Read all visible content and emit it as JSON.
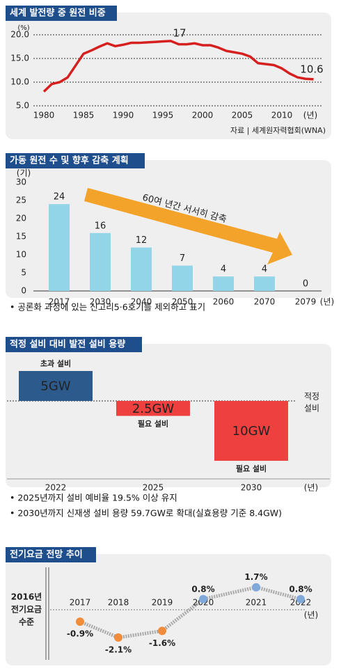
{
  "chart_data": [
    {
      "type": "line",
      "title": "세계 발전량 중 원전 비중",
      "y_unit": "(%)",
      "x_unit": "(년)",
      "source": "자료 | 세계원자력협회(WNA)",
      "color": "#d62020",
      "grid": true,
      "x": [
        1980,
        1981,
        1982,
        1983,
        1984,
        1985,
        1986,
        1987,
        1988,
        1989,
        1990,
        1991,
        1992,
        1993,
        1994,
        1995,
        1996,
        1997,
        1998,
        1999,
        2000,
        2001,
        2002,
        2003,
        2004,
        2005,
        2006,
        2007,
        2008,
        2009,
        2010,
        2011,
        2012,
        2013,
        2014
      ],
      "values": [
        8.0,
        9.6,
        10.0,
        11.0,
        13.5,
        16.0,
        16.7,
        17.5,
        18.2,
        17.6,
        17.9,
        18.3,
        18.3,
        18.4,
        18.5,
        18.6,
        18.7,
        18.0,
        18.0,
        18.2,
        17.8,
        17.8,
        17.3,
        16.6,
        16.3,
        16.0,
        15.4,
        14.0,
        13.8,
        13.6,
        12.9,
        11.8,
        11.0,
        10.7,
        10.6
      ],
      "xlim": [
        1980,
        2014
      ],
      "xticks": [
        1980,
        1985,
        1990,
        1995,
        2000,
        2005,
        2010
      ],
      "ylim": [
        5,
        20
      ],
      "yticks": [
        {
          "value": 5,
          "label": "5.0"
        },
        {
          "value": 10,
          "label": "10.0"
        },
        {
          "value": 15,
          "label": "15.0"
        },
        {
          "value": 20,
          "label": "20.0"
        }
      ],
      "annotations": [
        "17",
        "10.6"
      ]
    },
    {
      "type": "bar",
      "title": "가동 원전 수 및 향후 감축 계획",
      "y_unit": "(기)",
      "x_unit": "(년)",
      "color": "#92d5e8",
      "label_color": "#3a86c8",
      "categories": [
        "2017",
        "2030",
        "2040",
        "2050",
        "2060",
        "2070",
        "2079"
      ],
      "values": [
        24,
        16,
        12,
        7,
        4,
        4,
        0
      ],
      "ylim": [
        0,
        30
      ],
      "yticks": [
        0,
        5,
        10,
        15,
        20,
        25,
        30
      ],
      "annotation": "60여 년간 서서히 감축",
      "notes": [
        "• 공론화 과정에 있는 신고리5·6호기를 제외하고 표기"
      ]
    },
    {
      "type": "bar",
      "title": "적정 설비 대비 발전 설비 용량",
      "x_unit": "(년)",
      "baseline_label": [
        "적정",
        "설비"
      ],
      "categories": [
        "2022",
        "2025",
        "2030"
      ],
      "values": [
        5,
        -2.5,
        -10
      ],
      "value_labels": [
        "5GW",
        "2.5GW",
        "10GW"
      ],
      "bar_notes": [
        "초과 설비",
        "필요 설비",
        "필요 설비"
      ],
      "colors": [
        "#2c5a8c",
        "#ef4040",
        "#ef4040"
      ],
      "notes": [
        "• 2025년까지 설비 예비율 19.5% 이상 유지",
        "• 2030년까지 신재생 설비 용량 59.7GW로 확대(실효용량 기준 8.4GW)"
      ]
    },
    {
      "type": "line",
      "title": "전기요금 전망 추이",
      "x_unit": "(년)",
      "baseline_label": [
        "2016년",
        "전기요금",
        "수준"
      ],
      "categories": [
        "2017",
        "2018",
        "2019",
        "2020",
        "2021",
        "2022"
      ],
      "values": [
        -0.9,
        -2.1,
        -1.6,
        0.8,
        1.7,
        0.8
      ],
      "value_labels": [
        "-0.9%",
        "-2.1%",
        "-1.6%",
        "0.8%",
        "1.7%",
        "0.8%"
      ],
      "colors": [
        "#f08c3a",
        "#f08c3a",
        "#f08c3a",
        "#7ea9da",
        "#7ea9da",
        "#7ea9da"
      ],
      "line_color": "#aaaaaa"
    }
  ]
}
